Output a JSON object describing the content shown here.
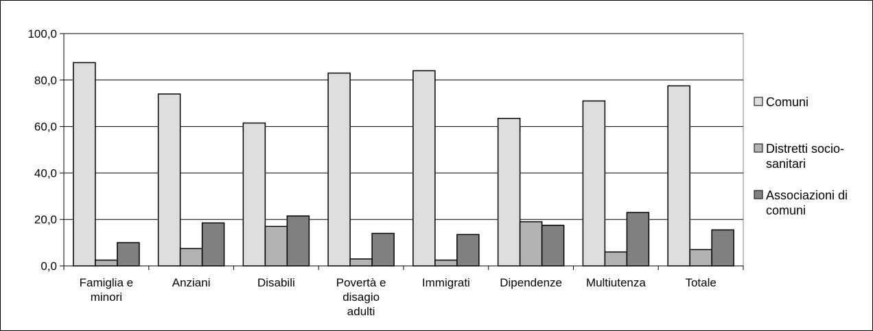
{
  "chart_data": {
    "type": "bar",
    "categories": [
      [
        "Famiglia e",
        "minori"
      ],
      [
        "Anziani"
      ],
      [
        "Disabili"
      ],
      [
        "Povertà e",
        "disagio",
        "adulti"
      ],
      [
        "Immigrati"
      ],
      [
        "Dipendenze"
      ],
      [
        "Multiutenza"
      ],
      [
        "Totale"
      ]
    ],
    "series": [
      {
        "name": [
          "Comuni"
        ],
        "color": "#dddddd",
        "values": [
          87.5,
          74.0,
          61.5,
          83.0,
          84.0,
          63.5,
          71.0,
          77.5
        ]
      },
      {
        "name": [
          "Distretti socio-",
          "sanitari"
        ],
        "color": "#b3b3b3",
        "values": [
          2.5,
          7.5,
          17.0,
          3.0,
          2.5,
          19.0,
          6.0,
          7.0
        ]
      },
      {
        "name": [
          "Associazioni di",
          "comuni"
        ],
        "color": "#808080",
        "values": [
          10.0,
          18.5,
          21.5,
          14.0,
          13.5,
          17.5,
          23.0,
          15.5
        ]
      }
    ],
    "y_ticks": [
      "0,0",
      "20,0",
      "40,0",
      "60,0",
      "80,0",
      "100,0"
    ],
    "ylim": [
      0,
      100
    ],
    "grid": true,
    "legend_position": "right",
    "title": "",
    "xlabel": "",
    "ylabel": ""
  }
}
